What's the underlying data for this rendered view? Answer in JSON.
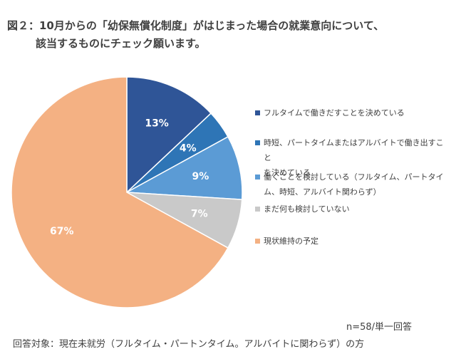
{
  "figure": {
    "title_line1": "図２：10月からの「幼保無償化制度」がはじまった場合の就業意向について、",
    "title_line2": "該当するものにチェック願います。"
  },
  "chart_data": {
    "type": "pie",
    "categories": [
      "フルタイムで働きだすことを決めている",
      "時短、パートタイムまたはアルバイトで働き出すことを決めている",
      "働くことを検討している（フルタイム、パートタイム、時短、アルバイト関わらず）",
      "まだ何も検討していない",
      "現状維持の予定"
    ],
    "values": [
      13,
      4,
      9,
      7,
      67
    ],
    "labels": [
      "13%",
      "4%",
      "9%",
      "7%",
      "67%"
    ],
    "colors": [
      "#2F5597",
      "#2E75B6",
      "#5B9BD5",
      "#C9C9C9",
      "#F4B183"
    ],
    "legend_position": "right",
    "start": "top",
    "direction": "clockwise"
  },
  "legend": {
    "items": [
      {
        "lines": [
          "フルタイムで働きだすことを決めている"
        ],
        "color": "#2F5597"
      },
      {
        "lines": [
          "時短、パートタイムまたはアルバイトで働き出すこと",
          "を決めている"
        ],
        "color": "#2E75B6"
      },
      {
        "lines": [
          "働くことを検討している（フルタイム、パートタイ",
          "ム、時短、アルバイト関わらず）"
        ],
        "color": "#5B9BD5"
      },
      {
        "lines": [
          "まだ何も検討していない"
        ],
        "color": "#C9C9C9"
      },
      {
        "lines": [
          "現状維持の予定"
        ],
        "color": "#F4B183"
      }
    ]
  },
  "notes": {
    "sample": "n=58/単一回答",
    "target": "回答対象：現在未就労（フルタイム・パートンタイム。アルバイトに関わらず）の方"
  }
}
